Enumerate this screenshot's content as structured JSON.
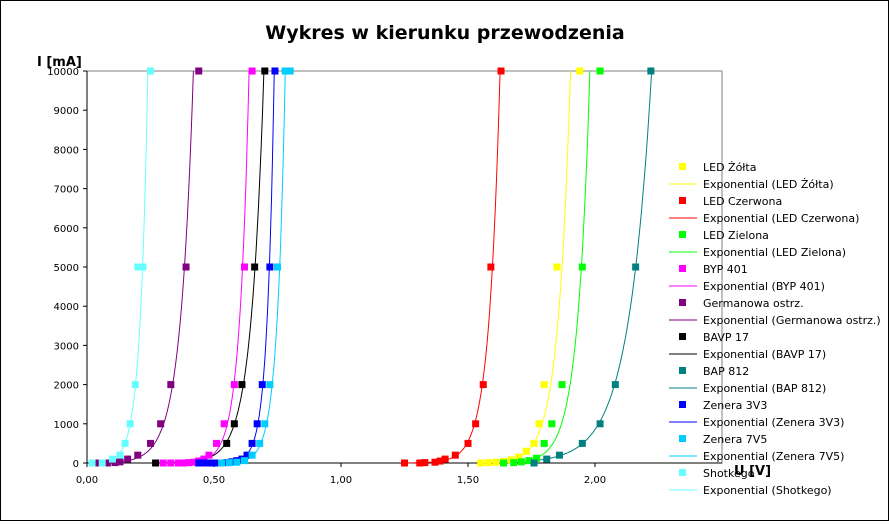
{
  "chart_data": {
    "type": "scatter",
    "title": "Wykres w kierunku przewodzenia",
    "xlabel": "U [V]",
    "ylabel": "I [mA]",
    "xlim": [
      0,
      2.5
    ],
    "ylim": [
      0,
      10000
    ],
    "x_ticks": [
      "0,00",
      "0,50",
      "1,00",
      "1,50",
      "2,00"
    ],
    "y_ticks": [
      "0",
      "1000",
      "2000",
      "3000",
      "4000",
      "5000",
      "6000",
      "7000",
      "8000",
      "9000",
      "10000"
    ],
    "grid": false,
    "legend_position": "right",
    "series": [
      {
        "name": "LED Żółta",
        "trend_name": "Exponential (LED Żółta)",
        "color": "#ffff00",
        "x": [
          1.55,
          1.58,
          1.61,
          1.64,
          1.67,
          1.7,
          1.73,
          1.76,
          1.78,
          1.8,
          1.85,
          1.94
        ],
        "y": [
          0,
          10,
          20,
          40,
          80,
          150,
          300,
          500,
          1000,
          2000,
          5000,
          10000
        ]
      },
      {
        "name": "LED Czerwona",
        "trend_name": "Exponential (LED Czerwona)",
        "color": "#ff0000",
        "x": [
          1.25,
          1.31,
          1.33,
          1.37,
          1.39,
          1.41,
          1.45,
          1.5,
          1.53,
          1.56,
          1.59,
          1.63
        ],
        "y": [
          0,
          0,
          10,
          20,
          50,
          100,
          200,
          500,
          1000,
          2000,
          5000,
          10000
        ]
      },
      {
        "name": "LED Zielona",
        "trend_name": "Exponential (LED Zielona)",
        "color": "#00ff00",
        "x": [
          1.64,
          1.68,
          1.71,
          1.74,
          1.77,
          1.8,
          1.83,
          1.87,
          1.95,
          2.02
        ],
        "y": [
          0,
          10,
          30,
          60,
          120,
          500,
          1000,
          2000,
          5000,
          10000
        ]
      },
      {
        "name": "BYP 401",
        "trend_name": "Exponential (BYP 401)",
        "color": "#ff00ff",
        "x": [
          0.3,
          0.33,
          0.36,
          0.38,
          0.4,
          0.42,
          0.44,
          0.46,
          0.48,
          0.51,
          0.54,
          0.58,
          0.62,
          0.65
        ],
        "y": [
          0,
          0,
          0,
          0,
          10,
          20,
          50,
          100,
          200,
          500,
          1000,
          2000,
          5000,
          10000
        ]
      },
      {
        "name": "Germanowa ostrz.",
        "trend_name": "Exponential (Germanowa ostrz.)",
        "color": "#800080",
        "x": [
          0.04,
          0.06,
          0.08,
          0.11,
          0.13,
          0.16,
          0.2,
          0.25,
          0.29,
          0.33,
          0.39,
          0.44
        ],
        "y": [
          0,
          0,
          0,
          10,
          30,
          100,
          200,
          500,
          1000,
          2000,
          5000,
          10000
        ]
      },
      {
        "name": "BAVP 17",
        "trend_name": "Exponential (BAVP 17)",
        "color": "#000000",
        "x": [
          0.27,
          0.55,
          0.58,
          0.61,
          0.66,
          0.7
        ],
        "y": [
          0,
          500,
          1000,
          2000,
          5000,
          10000
        ]
      },
      {
        "name": "BAP 812",
        "trend_name": "Exponential (BAP 812)",
        "color": "#008080",
        "x": [
          1.76,
          1.81,
          1.86,
          1.95,
          2.02,
          2.08,
          2.16,
          2.22
        ],
        "y": [
          0,
          100,
          200,
          500,
          1000,
          2000,
          5000,
          10000
        ]
      },
      {
        "name": "Zenera 3V3",
        "trend_name": "Exponential (Zenera 3V3)",
        "color": "#0000ff",
        "x": [
          0.44,
          0.46,
          0.48,
          0.5,
          0.52,
          0.55,
          0.57,
          0.59,
          0.61,
          0.63,
          0.65,
          0.67,
          0.69,
          0.72,
          0.74
        ],
        "y": [
          0,
          0,
          0,
          0,
          0,
          10,
          30,
          60,
          100,
          200,
          500,
          1000,
          2000,
          5000,
          10000
        ]
      },
      {
        "name": "Zenera 7V5",
        "trend_name": "Exponential (Zenera 7V5)",
        "color": "#00ccff",
        "x": [
          0.53,
          0.56,
          0.59,
          0.62,
          0.65,
          0.68,
          0.7,
          0.72,
          0.75,
          0.78,
          0.8
        ],
        "y": [
          0,
          10,
          20,
          60,
          200,
          500,
          1000,
          2000,
          5000,
          10000,
          10000
        ]
      },
      {
        "name": "Shotkego",
        "trend_name": "Exponential (Shotkego)",
        "color": "#66ffff",
        "x": [
          0.02,
          0.06,
          0.1,
          0.13,
          0.15,
          0.17,
          0.19,
          0.2,
          0.22,
          0.25
        ],
        "y": [
          0,
          0,
          100,
          200,
          500,
          1000,
          2000,
          5000,
          5000,
          10000
        ]
      }
    ]
  }
}
